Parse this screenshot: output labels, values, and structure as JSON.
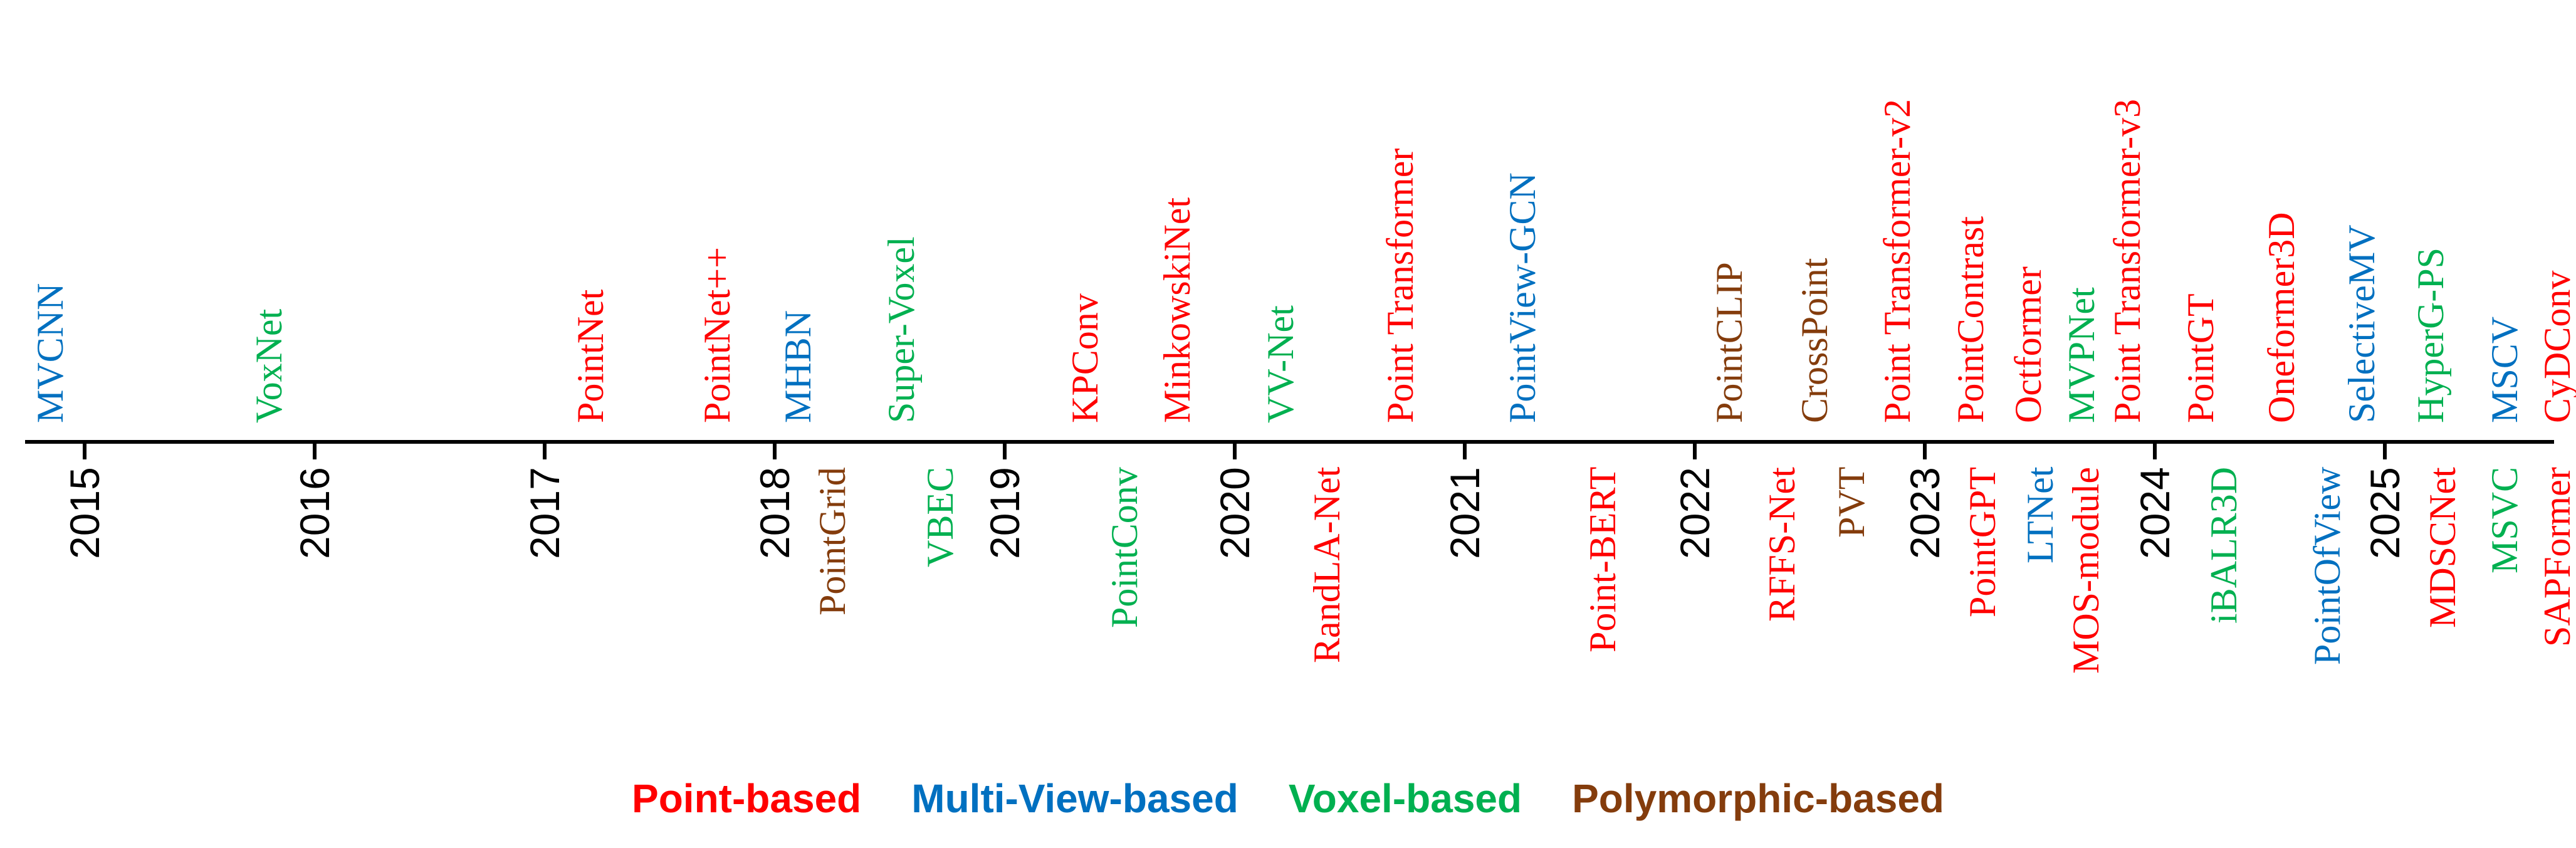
{
  "colors": {
    "point": "#FF0000",
    "multiview": "#0070C0",
    "voxel": "#00B050",
    "polymorphic": "#843C0C"
  },
  "legend": {
    "point": "Point-based",
    "multiview": "Multi-View-based",
    "voxel": "Voxel-based",
    "polymorphic": "Polymorphic-based"
  },
  "timeline": {
    "start": 2015,
    "end": 2025,
    "years": [
      "2015",
      "2016",
      "2017",
      "2018",
      "2019",
      "2020",
      "2021",
      "2022",
      "2023",
      "2024",
      "2025"
    ]
  },
  "methods": [
    {
      "name": "MVCNN",
      "category": "multiview",
      "year": 2014.85,
      "side": "above"
    },
    {
      "name": "VoxNet",
      "category": "voxel",
      "year": 2015.8,
      "side": "above"
    },
    {
      "name": "PointNet",
      "category": "point",
      "year": 2017.2,
      "side": "above"
    },
    {
      "name": "PointNet++",
      "category": "point",
      "year": 2017.75,
      "side": "above"
    },
    {
      "name": "MHBN",
      "category": "multiview",
      "year": 2018.1,
      "side": "above"
    },
    {
      "name": "Super-Voxel",
      "category": "voxel",
      "year": 2018.55,
      "side": "above"
    },
    {
      "name": "KPConv",
      "category": "point",
      "year": 2019.35,
      "side": "above"
    },
    {
      "name": "MinkowskiNet",
      "category": "point",
      "year": 2019.75,
      "side": "above"
    },
    {
      "name": "VV-Net",
      "category": "voxel",
      "year": 2020.2,
      "side": "above"
    },
    {
      "name": "Point Transformer",
      "category": "point",
      "year": 2020.72,
      "side": "above"
    },
    {
      "name": "PointView-GCN",
      "category": "multiview",
      "year": 2021.25,
      "side": "above"
    },
    {
      "name": "PointCLIP",
      "category": "polymorphic",
      "year": 2022.15,
      "side": "above"
    },
    {
      "name": "CrossPoint",
      "category": "polymorphic",
      "year": 2022.52,
      "side": "above"
    },
    {
      "name": "Point Transformer-v2",
      "category": "point",
      "year": 2022.88,
      "side": "above"
    },
    {
      "name": "PointContrast",
      "category": "point",
      "year": 2023.2,
      "side": "above"
    },
    {
      "name": "Octformer",
      "category": "point",
      "year": 2023.45,
      "side": "above"
    },
    {
      "name": "MVPNet",
      "category": "voxel",
      "year": 2023.68,
      "side": "above"
    },
    {
      "name": "Point Transformer-v3",
      "category": "point",
      "year": 2023.88,
      "side": "above"
    },
    {
      "name": "PointGT",
      "category": "point",
      "year": 2024.2,
      "side": "above"
    },
    {
      "name": "Oneformer3D",
      "category": "point",
      "year": 2024.55,
      "side": "above"
    },
    {
      "name": "SelectiveMV",
      "category": "multiview",
      "year": 2024.9,
      "side": "above"
    },
    {
      "name": "HyperG-PS",
      "category": "voxel",
      "year": 2025.2,
      "side": "above"
    },
    {
      "name": "MSCV",
      "category": "multiview",
      "year": 2025.52,
      "side": "above"
    },
    {
      "name": "CyDConv",
      "category": "point",
      "year": 2025.75,
      "side": "above"
    },
    {
      "name": "PointGrid",
      "category": "polymorphic",
      "year": 2018.25,
      "side": "below"
    },
    {
      "name": "VBEC",
      "category": "voxel",
      "year": 2018.72,
      "side": "below"
    },
    {
      "name": "PointConv",
      "category": "voxel",
      "year": 2019.52,
      "side": "below"
    },
    {
      "name": "RandLA-Net",
      "category": "point",
      "year": 2020.4,
      "side": "below"
    },
    {
      "name": "Point-BERT",
      "category": "point",
      "year": 2021.6,
      "side": "below"
    },
    {
      "name": "RFFS-Net",
      "category": "point",
      "year": 2022.38,
      "side": "below"
    },
    {
      "name": "PVT",
      "category": "polymorphic",
      "year": 2022.68,
      "side": "below"
    },
    {
      "name": "PointGPT",
      "category": "point",
      "year": 2023.25,
      "side": "below"
    },
    {
      "name": "LTNet",
      "category": "multiview",
      "year": 2023.5,
      "side": "below"
    },
    {
      "name": "MOS-module",
      "category": "point",
      "year": 2023.7,
      "side": "below"
    },
    {
      "name": "iBALR3D",
      "category": "voxel",
      "year": 2024.3,
      "side": "below"
    },
    {
      "name": "PointOfView",
      "category": "multiview",
      "year": 2024.75,
      "side": "below"
    },
    {
      "name": "MDSCNet",
      "category": "point",
      "year": 2025.25,
      "side": "below"
    },
    {
      "name": "MSVC",
      "category": "voxel",
      "year": 2025.52,
      "side": "below"
    },
    {
      "name": "SAPFormer",
      "category": "point",
      "year": 2025.75,
      "side": "below"
    }
  ]
}
